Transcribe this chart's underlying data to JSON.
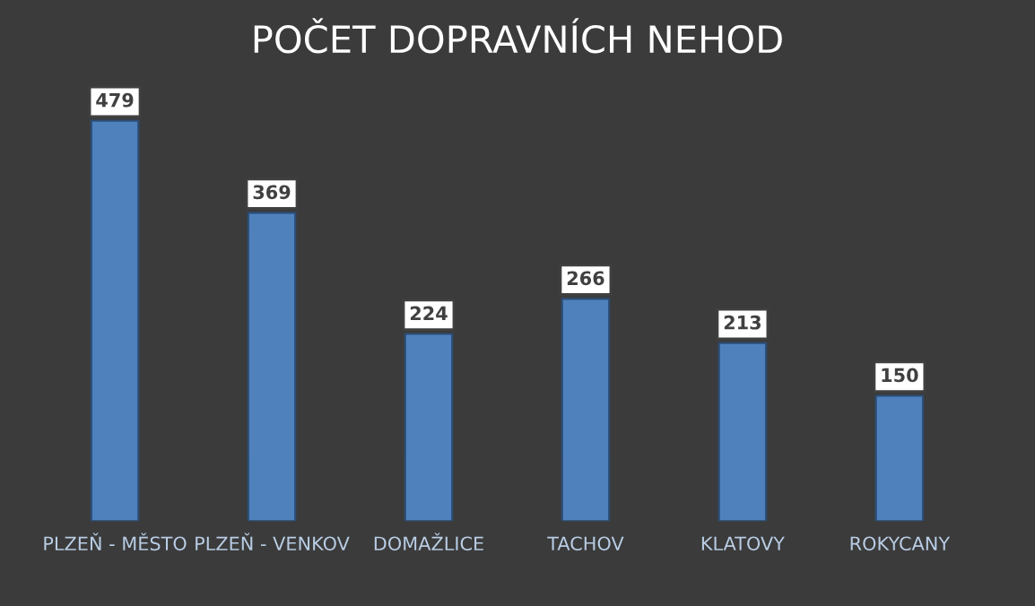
{
  "chart_data": {
    "type": "bar",
    "title": "POČET DOPRAVNÍCH NEHOD",
    "categories": [
      "PLZEŇ - MĚSTO",
      "PLZEŇ - VENKOV",
      "DOMAŽLICE",
      "TACHOV",
      "KLATOVY",
      "ROKYCANY"
    ],
    "values": [
      479,
      369,
      224,
      266,
      213,
      150
    ],
    "color": "#4f81bd",
    "data_labels": true,
    "grid": false,
    "legend": false
  }
}
